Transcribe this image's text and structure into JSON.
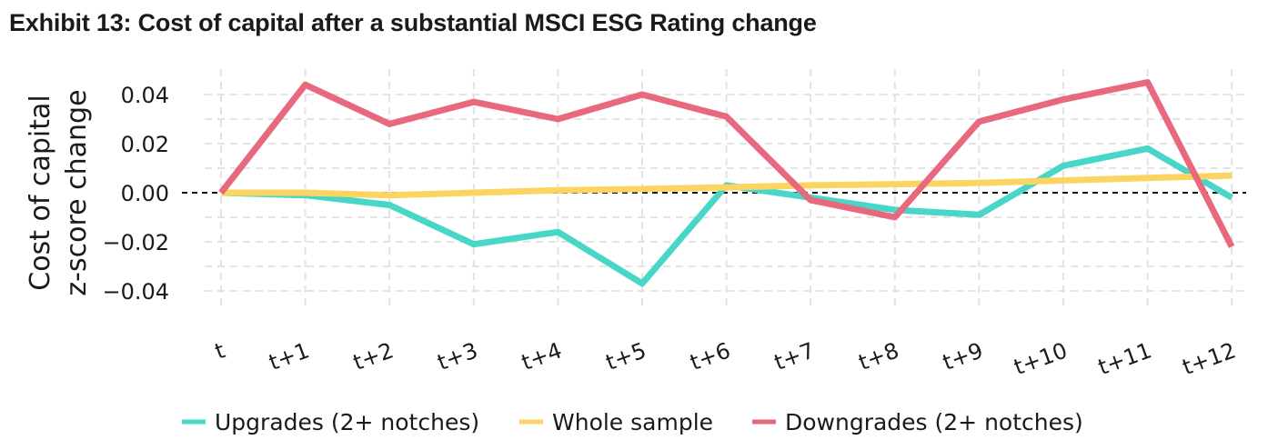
{
  "title": "Exhibit 13: Cost of capital after a substantial MSCI ESG Rating change",
  "chart_data": {
    "type": "line",
    "title": "Exhibit 13: Cost of capital after a substantial MSCI ESG Rating change",
    "xlabel": "",
    "ylabel_lines": [
      "Cost of capital",
      "z-score change"
    ],
    "categories": [
      "t",
      "t+1",
      "t+2",
      "t+3",
      "t+4",
      "t+5",
      "t+6",
      "t+7",
      "t+8",
      "t+9",
      "t+10",
      "t+11",
      "t+12"
    ],
    "ylim": [
      -0.045,
      0.048
    ],
    "yticks": [
      -0.04,
      -0.02,
      0.0,
      0.02,
      0.04
    ],
    "ytick_labels": [
      "−0.04",
      "−0.02",
      "0.00",
      "0.02",
      "0.04"
    ],
    "grid": true,
    "zero_line": "dashed",
    "legend_position": "bottom",
    "series": [
      {
        "name": "Upgrades (2+ notches)",
        "color": "#48d6c8",
        "values": [
          0.0,
          -0.001,
          -0.005,
          -0.021,
          -0.016,
          -0.037,
          0.003,
          -0.002,
          -0.007,
          -0.009,
          0.011,
          0.018,
          -0.002
        ]
      },
      {
        "name": "Whole sample",
        "color": "#fcd462",
        "values": [
          0.0,
          0.0,
          -0.001,
          0.0,
          0.001,
          0.0015,
          0.0022,
          0.003,
          0.0035,
          0.004,
          0.005,
          0.006,
          0.007
        ]
      },
      {
        "name": "Downgrades (2+ notches)",
        "color": "#e8687d",
        "values": [
          0.0,
          0.044,
          0.028,
          0.037,
          0.03,
          0.04,
          0.031,
          -0.003,
          -0.01,
          0.029,
          0.038,
          0.045,
          -0.022
        ]
      }
    ]
  }
}
